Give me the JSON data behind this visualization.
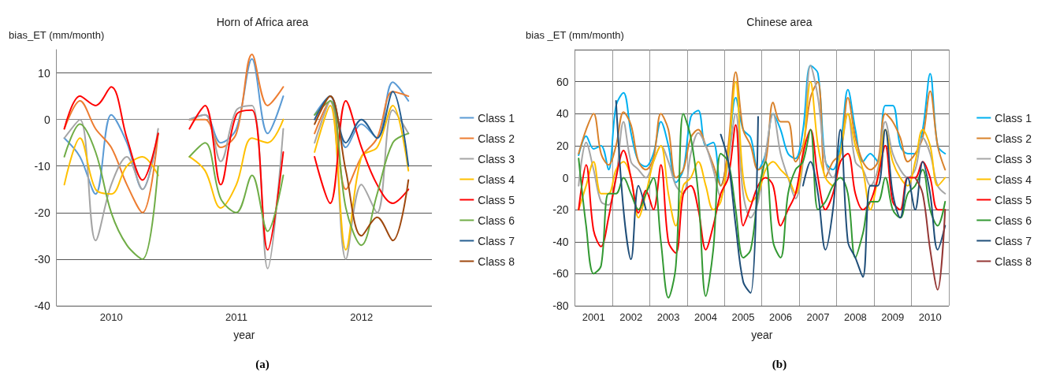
{
  "chart_data": [
    {
      "type": "line",
      "title": "Horn of Africa area",
      "xlabel": "year",
      "ylabel": "bias_ET (mm/month)",
      "annotations": [
        "(a)"
      ],
      "categories": [
        null,
        null,
        null,
        "2010",
        null,
        null,
        null,
        null,
        null,
        null,
        null,
        "2011",
        null,
        null,
        null,
        null,
        null,
        null,
        null,
        "2012",
        null,
        null,
        null,
        null
      ],
      "ylim": [
        -40,
        15
      ],
      "yticks": [
        -40,
        -30,
        -20,
        -10,
        0,
        10
      ],
      "grid": "y",
      "legend": "right",
      "marker": "none",
      "line_style": "solid",
      "series": [
        {
          "name": "Class 1",
          "color": "#5b9bd5",
          "values": [
            -4,
            -8,
            -16,
            1,
            -5,
            -15,
            -3,
            null,
            0,
            1,
            -5,
            -2,
            13,
            -3,
            5,
            null,
            1,
            5,
            -6,
            -1,
            -4,
            8,
            4,
            null
          ]
        },
        {
          "name": "Class 2",
          "color": "#ed7d31",
          "values": [
            -2,
            4,
            -2,
            -6,
            -14,
            -20,
            -3,
            null,
            0,
            0,
            -6,
            -3,
            14,
            3,
            7,
            null,
            -3,
            4,
            -15,
            -8,
            -4,
            6,
            5,
            null
          ]
        },
        {
          "name": "Class 3",
          "color": "#a5a5a5",
          "values": [
            -4,
            0,
            -26,
            -14,
            -8,
            -15,
            -2,
            null,
            0,
            1,
            -9,
            2,
            3,
            -32,
            -2,
            null,
            -5,
            4,
            -30,
            -14,
            -20,
            2,
            -3,
            null
          ]
        },
        {
          "name": "Class 4",
          "color": "#ffc000",
          "values": [
            -14,
            -4,
            -15,
            -16,
            -10,
            -8,
            -12,
            null,
            -8,
            -11,
            -19,
            -14,
            -4,
            -5,
            0,
            null,
            -7,
            3,
            -28,
            -8,
            -6,
            3,
            -11,
            null
          ]
        },
        {
          "name": "Class 5",
          "color": "#ff0000",
          "values": [
            -2,
            5,
            3,
            7,
            -4,
            -13,
            -3,
            null,
            -2,
            3,
            -14,
            1,
            2,
            -28,
            -7,
            null,
            -8,
            -18,
            4,
            -6,
            -14,
            -18,
            -15,
            null
          ]
        },
        {
          "name": "Class 6",
          "color": "#70ad47",
          "values": [
            -8,
            -1,
            -7,
            -20,
            -27,
            -30,
            -10,
            null,
            -8,
            -5,
            -17,
            -20,
            -12,
            -24,
            -12,
            null,
            1,
            4,
            -19,
            -27,
            -16,
            -5,
            -3,
            null
          ]
        },
        {
          "name": "Class 7",
          "color": "#255e91",
          "values": [
            null,
            null,
            null,
            null,
            null,
            null,
            null,
            null,
            null,
            null,
            null,
            null,
            null,
            null,
            null,
            null,
            0,
            5,
            -5,
            0,
            -4,
            6,
            -10,
            null
          ]
        },
        {
          "name": "Class 8",
          "color": "#9e480e",
          "values": [
            null,
            null,
            null,
            null,
            null,
            null,
            null,
            null,
            null,
            null,
            null,
            null,
            null,
            null,
            null,
            null,
            -1,
            5,
            -11,
            -25,
            -21,
            -26,
            -13,
            null
          ]
        }
      ]
    },
    {
      "type": "line",
      "title": "Chinese area",
      "xlabel": "year",
      "ylabel": "bias _ET (mm/month)",
      "annotations": [
        "(b)"
      ],
      "categories": [
        null,
        null,
        "2001",
        null,
        null,
        null,
        null,
        "2002",
        null,
        null,
        null,
        null,
        "2003",
        null,
        null,
        null,
        null,
        "2004",
        null,
        null,
        null,
        null,
        "2005",
        null,
        null,
        null,
        null,
        "2006",
        null,
        null,
        null,
        null,
        "2007",
        null,
        null,
        null,
        null,
        "2008",
        null,
        null,
        null,
        null,
        "2009",
        null,
        null,
        null,
        null,
        "2010",
        null,
        null
      ],
      "ylim": [
        -80,
        80
      ],
      "yticks": [
        -80,
        -60,
        -40,
        -20,
        0,
        20,
        40,
        60,
        {
          "value": 80,
          "label": null
        }
      ],
      "grid": true,
      "legend": "right",
      "marker": "none",
      "line_style": "solid",
      "series": [
        {
          "name": "Class 1",
          "color": "#00b0f0",
          "values": [
            14,
            26,
            18,
            20,
            5,
            45,
            53,
            28,
            10,
            7,
            15,
            35,
            20,
            -3,
            5,
            38,
            42,
            20,
            22,
            -5,
            15,
            50,
            30,
            25,
            5,
            15,
            40,
            30,
            15,
            12,
            30,
            70,
            65,
            10,
            5,
            20,
            55,
            30,
            10,
            15,
            10,
            45,
            45,
            20,
            15,
            15,
            30,
            65,
            20,
            15
          ]
        },
        {
          "name": "Class 2",
          "color": "#d9822b",
          "values": [
            15,
            30,
            40,
            15,
            8,
            20,
            41,
            33,
            10,
            5,
            12,
            40,
            30,
            0,
            5,
            25,
            30,
            20,
            8,
            -5,
            20,
            66,
            30,
            20,
            5,
            10,
            47,
            35,
            35,
            10,
            20,
            50,
            60,
            0,
            10,
            15,
            50,
            25,
            10,
            5,
            10,
            40,
            35,
            25,
            10,
            15,
            25,
            54,
            20,
            5
          ]
        },
        {
          "name": "Class 3",
          "color": "#a6a6a6",
          "values": [
            -5,
            22,
            5,
            -15,
            -17,
            0,
            35,
            10,
            5,
            0,
            10,
            20,
            10,
            -5,
            -10,
            15,
            28,
            20,
            5,
            -12,
            10,
            40,
            -10,
            -25,
            -15,
            15,
            40,
            15,
            0,
            -13,
            10,
            70,
            50,
            10,
            0,
            15,
            40,
            10,
            5,
            -5,
            5,
            35,
            15,
            5,
            0,
            5,
            25,
            15,
            -5,
            -10
          ]
        },
        {
          "name": "Class 4",
          "color": "#ffc000",
          "values": [
            -20,
            -5,
            10,
            -10,
            -10,
            5,
            10,
            0,
            -25,
            -10,
            10,
            20,
            -10,
            -30,
            -5,
            0,
            10,
            -5,
            -20,
            -15,
            15,
            60,
            0,
            -15,
            -10,
            5,
            10,
            5,
            0,
            -10,
            15,
            60,
            20,
            0,
            -5,
            15,
            40,
            20,
            5,
            -20,
            0,
            30,
            10,
            0,
            -5,
            10,
            30,
            20,
            -5,
            0
          ]
        },
        {
          "name": "Class 5",
          "color": "#ff0000",
          "values": [
            -20,
            8,
            -33,
            -43,
            -25,
            0,
            17,
            0,
            -22,
            -8,
            -20,
            8,
            -40,
            -47,
            -10,
            -5,
            -20,
            -45,
            -30,
            -10,
            0,
            33,
            -30,
            -18,
            -5,
            0,
            -5,
            -30,
            -20,
            -10,
            15,
            30,
            0,
            -20,
            -10,
            10,
            15,
            -10,
            -20,
            -15,
            0,
            20,
            -15,
            -20,
            0,
            0,
            10,
            0,
            -20,
            -20
          ]
        },
        {
          "name": "Class 6",
          "color": "#339933",
          "values": [
            12,
            -30,
            -60,
            -55,
            -10,
            -10,
            0,
            -10,
            -20,
            -10,
            0,
            -40,
            -75,
            -55,
            40,
            25,
            -10,
            -74,
            -45,
            15,
            10,
            -20,
            -50,
            -45,
            -10,
            10,
            -40,
            -50,
            -10,
            5,
            10,
            30,
            -20,
            -15,
            -5,
            0,
            -10,
            -50,
            -35,
            -15,
            -15,
            0,
            -20,
            -25,
            -10,
            -5,
            5,
            -20,
            -30,
            -15
          ]
        },
        {
          "name": "Class 7",
          "color": "#1f4e79",
          "values": [
            null,
            null,
            null,
            null,
            null,
            48,
            -20,
            -51,
            -5,
            -20,
            null,
            null,
            null,
            null,
            null,
            null,
            null,
            null,
            null,
            27,
            10,
            -30,
            -65,
            -72,
            38,
            null,
            null,
            null,
            null,
            null,
            -5,
            10,
            -10,
            -45,
            -20,
            30,
            -40,
            -50,
            -62,
            -5,
            -5,
            30,
            -10,
            -25,
            0,
            -20,
            10,
            -10,
            -45,
            -30
          ]
        },
        {
          "name": "Class 8",
          "color": "#953735",
          "values": [
            null,
            null,
            null,
            null,
            null,
            null,
            null,
            null,
            null,
            null,
            null,
            null,
            null,
            null,
            null,
            null,
            null,
            null,
            null,
            null,
            null,
            null,
            null,
            null,
            null,
            null,
            null,
            null,
            null,
            null,
            null,
            null,
            null,
            null,
            null,
            null,
            null,
            null,
            null,
            null,
            null,
            null,
            null,
            null,
            null,
            0,
            -10,
            -45,
            -70,
            -20
          ]
        }
      ]
    }
  ]
}
